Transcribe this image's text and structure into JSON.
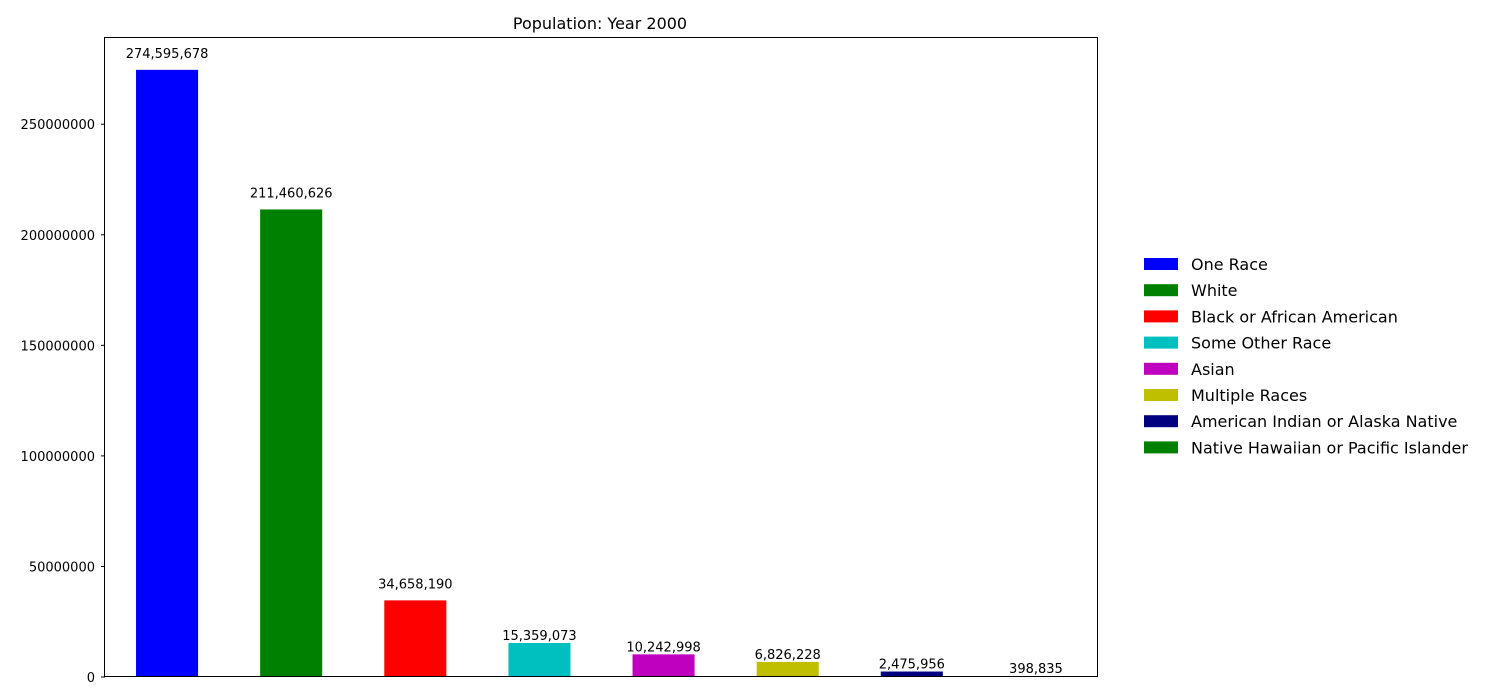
{
  "chart_data": {
    "type": "bar",
    "title": "Population: Year 2000",
    "xlabel": "",
    "ylabel": "",
    "ylim": [
      0,
      289000000
    ],
    "yticks": [
      0,
      50000000,
      100000000,
      150000000,
      200000000,
      250000000
    ],
    "ytick_labels": [
      "0",
      "50000000",
      "100000000",
      "150000000",
      "200000000",
      "250000000"
    ],
    "grid": false,
    "legend_position": "right",
    "categories": [
      "One Race",
      "White",
      "Black or African American",
      "Some Other Race",
      "Asian",
      "Multiple Races",
      "American Indian or Alaska Native",
      "Native Hawaiian or Pacific Islander"
    ],
    "values": [
      274595678,
      211460626,
      34658190,
      15359073,
      10242998,
      6826228,
      2475956,
      398835
    ],
    "value_labels": [
      "274,595,678",
      "211,460,626",
      "34,658,190",
      "15,359,073",
      "10,242,998",
      "6,826,228",
      "2,475,956",
      "398,835"
    ],
    "colors": [
      "#0000ff",
      "#008000",
      "#ff0000",
      "#00bfbf",
      "#bf00bf",
      "#bfbf00",
      "#000080",
      "#008000"
    ]
  }
}
